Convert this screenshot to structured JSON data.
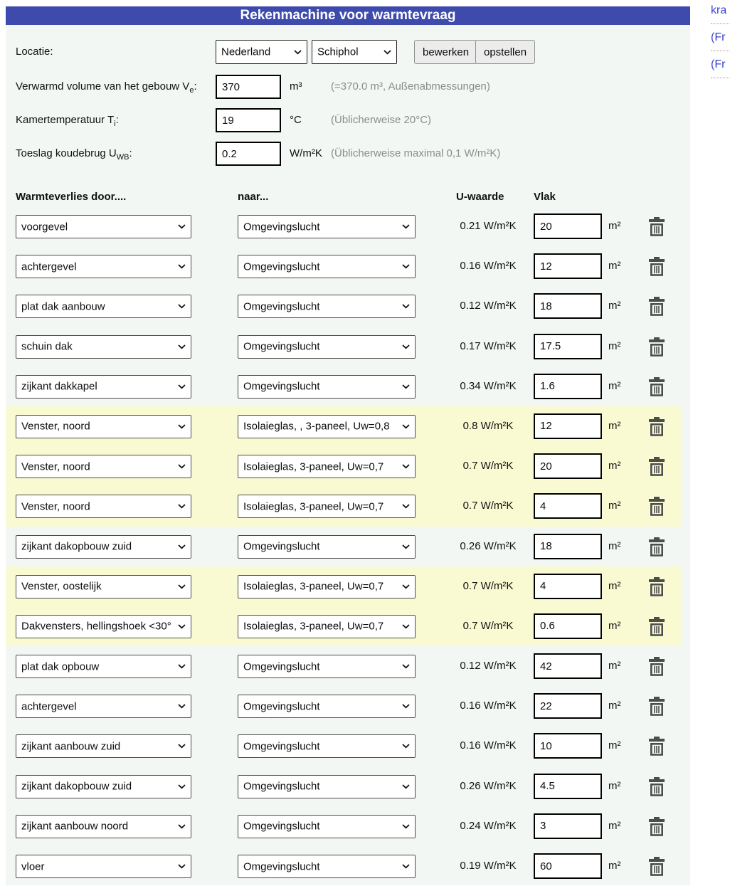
{
  "header": {
    "title": "Rekenmachine voor warmtevraag"
  },
  "side_links": {
    "items": [
      "kra",
      "(Fr",
      "(Fr"
    ]
  },
  "location": {
    "label": "Locatie:",
    "country_value": "Nederland",
    "station_value": "Schiphol",
    "edit_button": "bewerken",
    "create_button": "opstellen"
  },
  "params": {
    "volume": {
      "label_main": "Verwarmd volume van het gebouw V",
      "label_sub": "e",
      "label_post": ":",
      "value": "370",
      "unit": "m³",
      "hint": "(=370.0 m³, Außenabmessungen)"
    },
    "room_temp": {
      "label_main": "Kamertemperatuur T",
      "label_sub": "i",
      "label_post": ":",
      "value": "19",
      "unit": "°C",
      "hint": "(Üblicherweise 20°C)"
    },
    "thermal_bridge": {
      "label_main": "Toeslag koudebrug U",
      "label_sub": "WB",
      "label_post": ":",
      "value": "0.2",
      "unit": "W/m²K",
      "hint": "(Üblicherweise maximal 0,1 W/m²K)"
    }
  },
  "table": {
    "headers": {
      "col1": "Warmteverlies door....",
      "col2": "naar...",
      "col3": "U-waarde",
      "col4": "Vlak"
    },
    "area_unit": "m²",
    "rows": [
      {
        "surface": "voorgevel",
        "target": "Omgevingslucht",
        "u": "0.21 W/m²K",
        "area": "20",
        "highlight": false
      },
      {
        "surface": "achtergevel",
        "target": "Omgevingslucht",
        "u": "0.16 W/m²K",
        "area": "12",
        "highlight": false
      },
      {
        "surface": "plat dak aanbouw",
        "target": "Omgevingslucht",
        "u": "0.12 W/m²K",
        "area": "18",
        "highlight": false
      },
      {
        "surface": "schuin dak",
        "target": "Omgevingslucht",
        "u": "0.17 W/m²K",
        "area": "17.5",
        "highlight": false
      },
      {
        "surface": "zijkant dakkapel",
        "target": "Omgevingslucht",
        "u": "0.34 W/m²K",
        "area": "1.6",
        "highlight": false
      },
      {
        "surface": "Venster, noord",
        "target": "Isolaieglas, , 3-paneel, Uw=0,8",
        "u": "0.8 W/m²K",
        "area": "12",
        "highlight": true
      },
      {
        "surface": "Venster, noord",
        "target": "Isolaieglas, 3-paneel, Uw=0,7",
        "u": "0.7 W/m²K",
        "area": "20",
        "highlight": true
      },
      {
        "surface": "Venster, noord",
        "target": "Isolaieglas, 3-paneel, Uw=0,7",
        "u": "0.7 W/m²K",
        "area": "4",
        "highlight": true
      },
      {
        "surface": "zijkant dakopbouw zuid",
        "target": "Omgevingslucht",
        "u": "0.26 W/m²K",
        "area": "18",
        "highlight": false
      },
      {
        "surface": "Venster, oostelijk",
        "target": "Isolaieglas, 3-paneel, Uw=0,7",
        "u": "0.7 W/m²K",
        "area": "4",
        "highlight": true
      },
      {
        "surface": "Dakvensters, hellingshoek <30°",
        "target": "Isolaieglas, 3-paneel, Uw=0,7",
        "u": "0.7 W/m²K",
        "area": "0.6",
        "highlight": true
      },
      {
        "surface": "plat dak opbouw",
        "target": "Omgevingslucht",
        "u": "0.12 W/m²K",
        "area": "42",
        "highlight": false
      },
      {
        "surface": "achtergevel",
        "target": "Omgevingslucht",
        "u": "0.16 W/m²K",
        "area": "22",
        "highlight": false
      },
      {
        "surface": "zijkant aanbouw zuid",
        "target": "Omgevingslucht",
        "u": "0.16 W/m²K",
        "area": "10",
        "highlight": false
      },
      {
        "surface": "zijkant dakopbouw zuid",
        "target": "Omgevingslucht",
        "u": "0.26 W/m²K",
        "area": "4.5",
        "highlight": false
      },
      {
        "surface": "zijkant aanbouw noord",
        "target": "Omgevingslucht",
        "u": "0.24 W/m²K",
        "area": "3",
        "highlight": false
      },
      {
        "surface": "vloer",
        "target": "Omgevingslucht",
        "u": "0.19 W/m²K",
        "area": "60",
        "highlight": false
      }
    ]
  }
}
